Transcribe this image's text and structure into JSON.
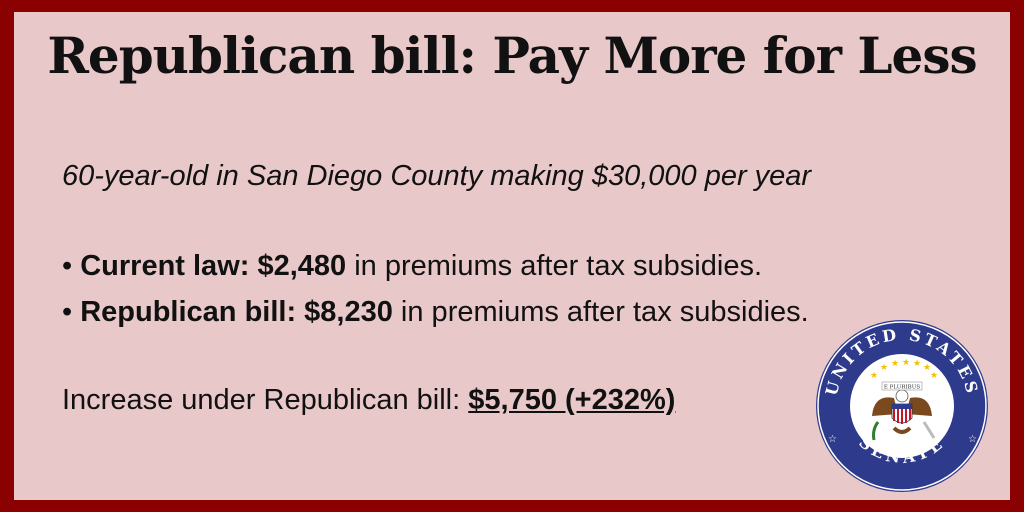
{
  "title": "Republican bill: Pay More for Less",
  "subtitle": "60-year-old in San Diego County making $30,000 per year",
  "bullets": [
    {
      "marker": "•",
      "label": "Current law: $2,480",
      "text": " in premiums after tax subsidies."
    },
    {
      "marker": "•",
      "label": "Republican bill: $8,230",
      "text": " in premiums after tax subsidies."
    }
  ],
  "increase": {
    "label": "Increase under Republican bill: ",
    "amount": "$5,750 (+232%)"
  },
  "seal": {
    "top_text": "UNITED STATES",
    "bottom_text": "SENATE",
    "banner_text": "E PLURIBUS",
    "colors": {
      "ring": "#2e3a8c",
      "gold": "#f2c200",
      "inner": "#ffffff"
    }
  },
  "colors": {
    "border": "#8b0000",
    "background": "#e8c8c9",
    "text": "#111111"
  }
}
